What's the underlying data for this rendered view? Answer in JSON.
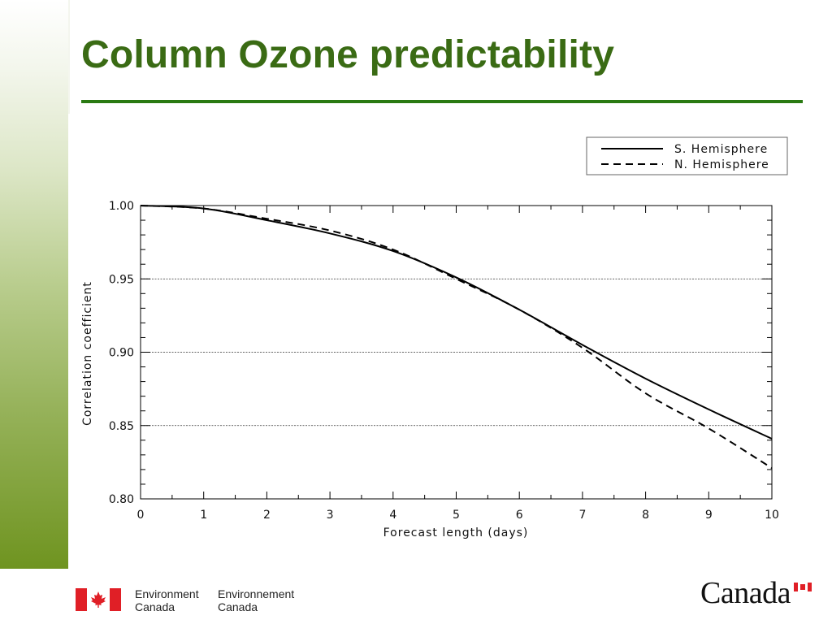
{
  "slide": {
    "title": "Column Ozone predictability"
  },
  "footer": {
    "org_en_line1": "Environment",
    "org_en_line2": "Canada",
    "org_fr_line1": "Environnement",
    "org_fr_line2": "Canada",
    "wordmark": "Canada"
  },
  "colors": {
    "title": "#3a6b14",
    "rule": "#2a7a12",
    "flag_red": "#e01f26"
  },
  "icons": {
    "flag": "canada-flag-icon",
    "maple_leaf": "maple-leaf-icon"
  },
  "chart_data": {
    "type": "line",
    "xlabel": "Forecast length (days)",
    "ylabel": "Correlation coefficient",
    "xlim": [
      0,
      10
    ],
    "ylim": [
      0.8,
      1.0
    ],
    "x_ticks": [
      0,
      1,
      2,
      3,
      4,
      5,
      6,
      7,
      8,
      9,
      10
    ],
    "y_ticks": [
      0.8,
      0.85,
      0.9,
      0.95,
      1.0
    ],
    "x_tick_labels": [
      "0",
      "1",
      "2",
      "3",
      "4",
      "5",
      "6",
      "7",
      "8",
      "9",
      "10"
    ],
    "y_tick_labels": [
      "0.80",
      "0.85",
      "0.90",
      "0.95",
      "1.00"
    ],
    "gridlines_y": [
      0.85,
      0.9,
      0.95
    ],
    "legend_position": "top-right, above plot",
    "series": [
      {
        "name": "S. Hemisphere",
        "style": "solid",
        "x": [
          0,
          1,
          2,
          3,
          4,
          5,
          6,
          7,
          8,
          9,
          10
        ],
        "values": [
          1.0,
          0.998,
          0.99,
          0.981,
          0.969,
          0.951,
          0.929,
          0.905,
          0.882,
          0.861,
          0.841
        ]
      },
      {
        "name": "N. Hemisphere",
        "style": "dashed",
        "x": [
          0,
          1,
          2,
          3,
          4,
          5,
          6,
          7,
          8,
          9,
          10
        ],
        "values": [
          1.0,
          0.998,
          0.991,
          0.983,
          0.97,
          0.95,
          0.929,
          0.903,
          0.872,
          0.848,
          0.821
        ]
      }
    ]
  }
}
